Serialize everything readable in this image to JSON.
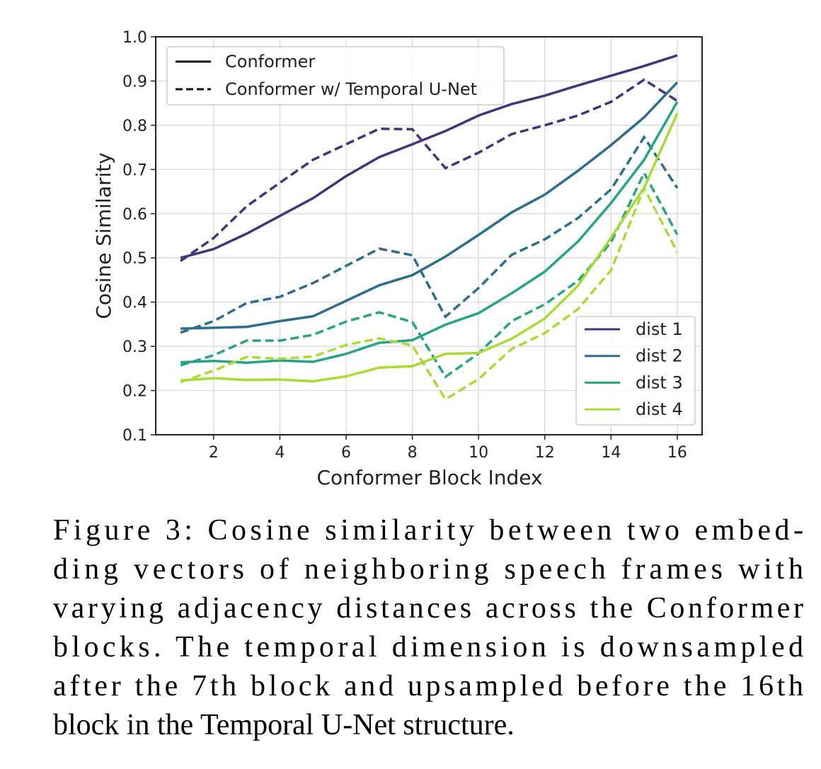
{
  "chart_data": {
    "type": "line",
    "x_label": "Conformer Block Index",
    "y_label": "Cosine Similarity",
    "x": [
      1,
      2,
      3,
      4,
      5,
      6,
      7,
      8,
      9,
      10,
      11,
      12,
      13,
      14,
      15,
      16
    ],
    "xlim": [
      0.25,
      16.75
    ],
    "xticks": [
      2,
      4,
      6,
      8,
      10,
      12,
      14,
      16
    ],
    "ylim": [
      0.1,
      1.0
    ],
    "yticks": [
      {
        "value": 0.1,
        "label": "0.1"
      },
      {
        "value": 0.2,
        "label": "0.2"
      },
      {
        "value": 0.3,
        "label": "0.3"
      },
      {
        "value": 0.4,
        "label": "0.4"
      },
      {
        "value": 0.5,
        "label": "0.5"
      },
      {
        "value": 0.6,
        "label": "0.6"
      },
      {
        "value": 0.7,
        "label": "0.7"
      },
      {
        "value": 0.8,
        "label": "0.8"
      },
      {
        "value": 0.9,
        "label": "0.9"
      },
      {
        "value": 1.0,
        "label": "1.0"
      }
    ],
    "grid": true,
    "styles": [
      {
        "name": "Conformer",
        "dash": "solid"
      },
      {
        "name": "Conformer w/ Temporal U-Net",
        "dash": "dashed"
      }
    ],
    "series": [
      {
        "name": "dist 1",
        "color": "#46337e",
        "values": [
          0.5,
          0.52,
          0.555,
          0.595,
          0.635,
          0.685,
          0.728,
          0.757,
          0.787,
          0.822,
          0.848,
          0.867,
          0.89,
          0.912,
          0.934,
          0.958
        ],
        "unet_values": [
          0.493,
          0.545,
          0.617,
          0.67,
          0.722,
          0.757,
          0.792,
          0.791,
          0.703,
          0.738,
          0.78,
          0.8,
          0.822,
          0.853,
          0.903,
          0.855
        ]
      },
      {
        "name": "dist 2",
        "color": "#2c6e8e",
        "values": [
          0.34,
          0.342,
          0.344,
          0.357,
          0.368,
          0.403,
          0.438,
          0.461,
          0.503,
          0.552,
          0.603,
          0.643,
          0.697,
          0.755,
          0.818,
          0.897
        ],
        "unet_values": [
          0.331,
          0.357,
          0.398,
          0.412,
          0.443,
          0.482,
          0.521,
          0.506,
          0.367,
          0.432,
          0.507,
          0.542,
          0.59,
          0.655,
          0.773,
          0.658
        ]
      },
      {
        "name": "dist 3",
        "color": "#25a584",
        "values": [
          0.264,
          0.267,
          0.263,
          0.268,
          0.265,
          0.283,
          0.308,
          0.314,
          0.349,
          0.375,
          0.42,
          0.469,
          0.537,
          0.624,
          0.722,
          0.853
        ],
        "unet_values": [
          0.257,
          0.28,
          0.313,
          0.313,
          0.326,
          0.356,
          0.377,
          0.355,
          0.231,
          0.284,
          0.357,
          0.395,
          0.448,
          0.535,
          0.692,
          0.553
        ]
      },
      {
        "name": "dist 4",
        "color": "#a8db34",
        "values": [
          0.223,
          0.228,
          0.224,
          0.225,
          0.221,
          0.232,
          0.252,
          0.255,
          0.283,
          0.285,
          0.317,
          0.363,
          0.437,
          0.546,
          0.659,
          0.827
        ],
        "unet_values": [
          0.219,
          0.245,
          0.276,
          0.272,
          0.277,
          0.303,
          0.318,
          0.302,
          0.18,
          0.226,
          0.294,
          0.33,
          0.384,
          0.472,
          0.658,
          0.513
        ]
      }
    ]
  },
  "caption_lines": [
    "Figure 3: Cosine similarity between two embed-",
    "ding vectors of neighboring speech frames with",
    "varying adjacency distances across the Conformer",
    "blocks. The temporal dimension is downsampled",
    "after the 7th block and upsampled before the 16th",
    "block in the Temporal U-Net structure."
  ]
}
